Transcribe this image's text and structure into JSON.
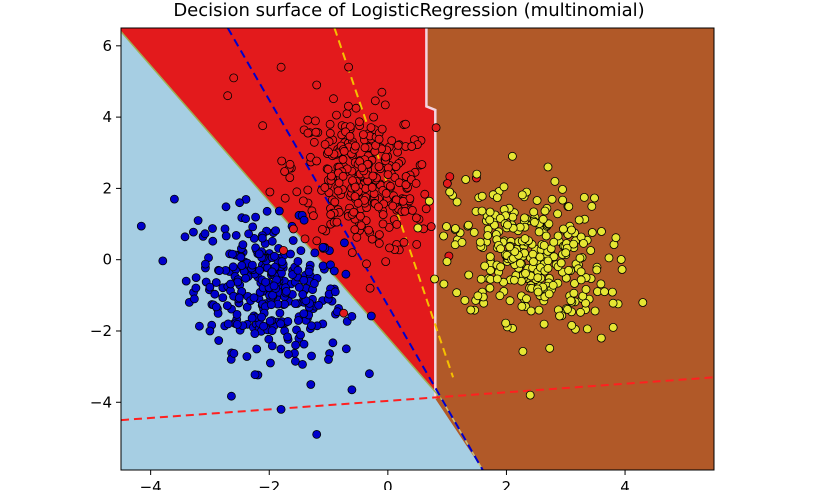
{
  "chart_data": {
    "type": "scatter",
    "title": "Decision surface of LogisticRegression (multinomial)",
    "xlabel": "",
    "ylabel": "",
    "xlim": [
      -4.5,
      5.5
    ],
    "ylim": [
      -5.9,
      6.5
    ],
    "xticks": [
      -4,
      -2,
      0,
      2,
      4
    ],
    "xtick_labels": [
      "−4",
      "−2",
      "0",
      "2",
      "4"
    ],
    "yticks": [
      -4,
      -2,
      0,
      2,
      4,
      6
    ],
    "ytick_labels": [
      "−4",
      "−2",
      "0",
      "2",
      "4",
      "6"
    ],
    "grid": false,
    "legend": "none",
    "regions": [
      {
        "class": 0,
        "color": "#a6cee3"
      },
      {
        "class": 1,
        "color": "#e31a1c"
      },
      {
        "class": 2,
        "color": "#b15928"
      }
    ],
    "decision_boundary_points": {
      "blue_red": [
        [
          -4.5,
          6.4
        ],
        [
          0.9,
          -3.9
        ]
      ],
      "red_brown": [
        [
          0.65,
          6.5
        ],
        [
          0.65,
          4.3
        ],
        [
          0.8,
          4.2
        ],
        [
          0.8,
          -3.9
        ]
      ],
      "blue_brown": [
        [
          0.9,
          -3.9
        ],
        [
          1.6,
          -5.9
        ]
      ]
    },
    "hyperplanes": [
      {
        "class": 0,
        "color": "#0000cc",
        "style": "dashed",
        "x": [
          -2.7,
          1.6
        ],
        "y": [
          6.5,
          -5.9
        ]
      },
      {
        "class": 1,
        "color": "#ff2020",
        "style": "dashed",
        "x": [
          -4.5,
          5.5
        ],
        "y": [
          -4.5,
          -3.3
        ]
      },
      {
        "class": 2,
        "color": "#f5c000",
        "style": "dashed",
        "x": [
          -0.9,
          1.1
        ],
        "y": [
          6.5,
          -3.3
        ]
      }
    ],
    "series": [
      {
        "class": 0,
        "color": "#0000cc",
        "center": [
          -2.0,
          -0.8
        ],
        "spread": [
          0.62,
          0.95
        ],
        "count": 320,
        "samples": [
          [
            -3.6,
            1.7
          ],
          [
            -3.2,
            1.1
          ],
          [
            -2.5,
            1.6
          ],
          [
            -3.4,
            -0.6
          ],
          [
            -3.0,
            -2.0
          ],
          [
            -1.0,
            -2.8
          ],
          [
            -1.3,
            -3.5
          ],
          [
            -1.8,
            -4.2
          ],
          [
            -1.2,
            -4.9
          ],
          [
            -0.7,
            -2.5
          ]
        ]
      },
      {
        "class": 1,
        "color": "#e31a1c",
        "center": [
          -0.4,
          2.2
        ],
        "spread": [
          0.6,
          0.95
        ],
        "count": 320,
        "samples": [
          [
            -2.7,
            4.6
          ],
          [
            -2.6,
            5.1
          ],
          [
            -1.8,
            5.4
          ],
          [
            -1.2,
            4.9
          ],
          [
            -0.1,
            4.7
          ],
          [
            0.3,
            3.8
          ],
          [
            -0.3,
            -0.8
          ],
          [
            -0.6,
            0.2
          ]
        ]
      },
      {
        "class": 2,
        "color": "#e6e633",
        "center": [
          2.4,
          0.1
        ],
        "spread": [
          0.65,
          0.95
        ],
        "count": 320,
        "samples": [
          [
            2.1,
            2.9
          ],
          [
            2.7,
            2.6
          ],
          [
            4.3,
            -1.2
          ],
          [
            3.6,
            -2.2
          ],
          [
            2.4,
            -3.8
          ],
          [
            1.5,
            2.4
          ],
          [
            3.8,
            -1.9
          ]
        ]
      }
    ]
  }
}
